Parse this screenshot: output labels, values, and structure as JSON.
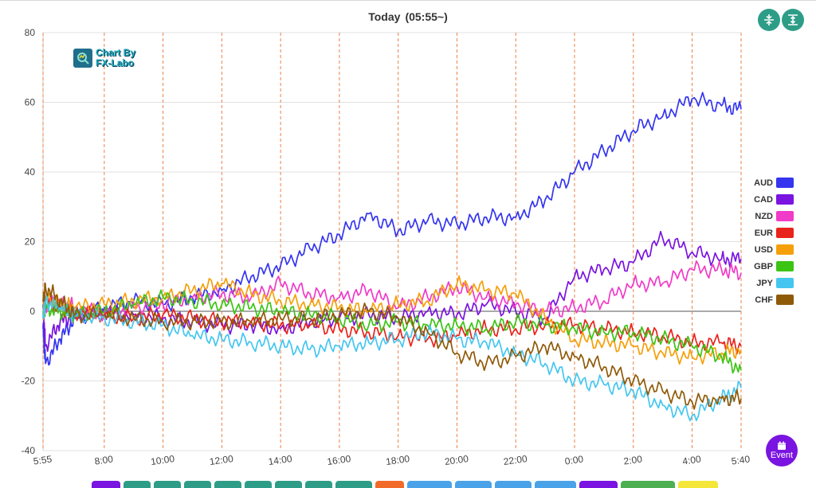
{
  "title": "Today",
  "subtitle": "(05:55~)",
  "logo": {
    "line1": "Chart By",
    "line2": "FX-Labo"
  },
  "event_button": {
    "label": "Event",
    "color": "#7a14e0"
  },
  "toolbar": {
    "accent": "#2e9d87",
    "icons": [
      "compress-icon",
      "expand-icon"
    ]
  },
  "bottom_tabs": [
    {
      "color": "#7a14e0"
    },
    {
      "color": "#2e9d87"
    },
    {
      "color": "#2e9d87"
    },
    {
      "color": "#2e9d87"
    },
    {
      "color": "#2e9d87"
    },
    {
      "color": "#2e9d87"
    },
    {
      "color": "#2e9d87"
    },
    {
      "color": "#2e9d87"
    },
    {
      "color": "#2e9d87"
    },
    {
      "color": "#f26b2b"
    },
    {
      "color": "#4aa3e8"
    },
    {
      "color": "#4aa3e8"
    },
    {
      "color": "#4aa3e8"
    },
    {
      "color": "#4aa3e8"
    },
    {
      "color": "#7a14e0"
    },
    {
      "color": "#4caf50"
    },
    {
      "color": "#f5e63a"
    }
  ],
  "chart_data": {
    "type": "line",
    "title": "Today (05:55~)",
    "xlabel": "",
    "ylabel": "",
    "ylim": [
      -40,
      80
    ],
    "yticks": [
      -40,
      -20,
      0,
      20,
      40,
      60,
      80
    ],
    "xlim": [
      5.9167,
      29.6667
    ],
    "xticks": [
      {
        "v": 5.9167,
        "label": "5:55"
      },
      {
        "v": 8,
        "label": "8:00"
      },
      {
        "v": 10,
        "label": "10:00"
      },
      {
        "v": 12,
        "label": "12:00"
      },
      {
        "v": 14,
        "label": "14:00"
      },
      {
        "v": 16,
        "label": "16:00"
      },
      {
        "v": 18,
        "label": "18:00"
      },
      {
        "v": 20,
        "label": "20:00"
      },
      {
        "v": 22,
        "label": "22:00"
      },
      {
        "v": 24,
        "label": "0:00"
      },
      {
        "v": 26,
        "label": "2:00"
      },
      {
        "v": 28,
        "label": "4:00"
      },
      {
        "v": 29.6667,
        "label": "5:40"
      }
    ],
    "x": [
      5.9167,
      6,
      6.5,
      7,
      8,
      9,
      10,
      11,
      12,
      13,
      14,
      15,
      16,
      17,
      18,
      19,
      20,
      21,
      22,
      23,
      24,
      25,
      26,
      27,
      28,
      29,
      29.6667
    ],
    "series": [
      {
        "name": "AUD",
        "color": "#3535f0",
        "values": [
          -5,
          -15,
          -8,
          -2,
          1,
          3,
          2,
          4,
          6,
          10,
          13,
          18,
          22,
          28,
          23,
          26,
          25,
          27,
          27,
          32,
          40,
          46,
          52,
          56,
          61,
          59,
          58
        ]
      },
      {
        "name": "CAD",
        "color": "#7a14e0",
        "values": [
          2,
          -10,
          -3,
          -1,
          0,
          -1,
          -2,
          -3,
          -4,
          -4,
          -5,
          -3,
          -2,
          -1,
          -2,
          0,
          -1,
          2,
          0,
          -2,
          10,
          12,
          14,
          21,
          17,
          15,
          15
        ]
      },
      {
        "name": "NZD",
        "color": "#f03bc8",
        "values": [
          3,
          2,
          3,
          1,
          -1,
          1,
          2,
          4,
          5,
          4,
          8,
          5,
          4,
          6,
          1,
          4,
          7,
          4,
          2,
          0,
          1,
          3,
          8,
          8,
          12,
          12,
          11
        ]
      },
      {
        "name": "EUR",
        "color": "#e8231c",
        "values": [
          1,
          3,
          1,
          0,
          -1,
          -2,
          -1,
          -2,
          -3,
          -3,
          -4,
          -4,
          -5,
          -6,
          -7,
          -8,
          -7,
          -5,
          -5,
          -4,
          -4,
          -5,
          -6,
          -7,
          -9,
          -9,
          -10
        ]
      },
      {
        "name": "USD",
        "color": "#f5a00a",
        "values": [
          0,
          4,
          2,
          1,
          2,
          3,
          4,
          6,
          8,
          5,
          3,
          2,
          1,
          0,
          2,
          3,
          8,
          6,
          5,
          -2,
          -8,
          -9,
          -10,
          -12,
          -13,
          -12,
          -11
        ]
      },
      {
        "name": "GBP",
        "color": "#3cc414",
        "values": [
          -1,
          1,
          0,
          -1,
          0,
          2,
          4,
          3,
          2,
          1,
          0,
          -1,
          -2,
          -4,
          -3,
          -4,
          -4,
          -5,
          -3,
          -4,
          -5,
          -6,
          -6,
          -8,
          -10,
          -13,
          -17
        ]
      },
      {
        "name": "JPY",
        "color": "#45c6f0",
        "values": [
          -2,
          3,
          1,
          -1,
          -2,
          -3,
          -4,
          -7,
          -8,
          -9,
          -10,
          -11,
          -10,
          -9,
          -8,
          -6,
          -8,
          -9,
          -12,
          -15,
          -20,
          -21,
          -23,
          -27,
          -30,
          -25,
          -22
        ]
      },
      {
        "name": "CHF",
        "color": "#8f5a08",
        "values": [
          3,
          7,
          3,
          -1,
          -1,
          -2,
          -3,
          -3,
          -3,
          -3,
          -2,
          -2,
          -1,
          0,
          -2,
          -6,
          -12,
          -15,
          -13,
          -10,
          -13,
          -16,
          -20,
          -23,
          -26,
          -25,
          -25
        ]
      }
    ]
  }
}
